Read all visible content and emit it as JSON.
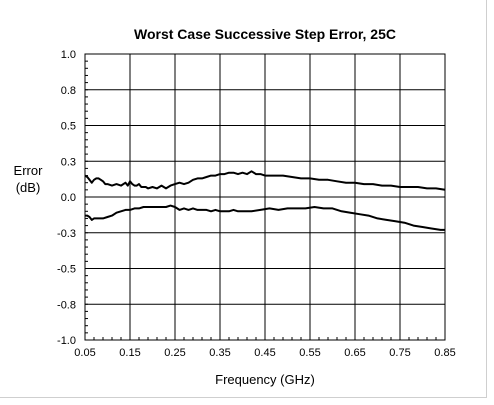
{
  "chart_data": {
    "type": "line",
    "title": "Worst Case Successive Step Error, 25C",
    "xlabel": "Frequency (GHz)",
    "ylabel_line1": "Error",
    "ylabel_line2": "(dB)",
    "xlim": [
      0.05,
      0.85
    ],
    "ylim": [
      -1.0,
      1.0
    ],
    "x_ticks": [
      0.05,
      0.15,
      0.25,
      0.35,
      0.45,
      0.55,
      0.65,
      0.75,
      0.85
    ],
    "x_tick_labels": [
      "0.05",
      "0.15",
      "0.25",
      "0.35",
      "0.45",
      "0.55",
      "0.65",
      "0.75",
      "0.85"
    ],
    "y_ticks": [
      1.0,
      0.75,
      0.5,
      0.25,
      0.0,
      -0.25,
      -0.5,
      -0.75,
      -1.0
    ],
    "y_tick_labels": [
      "1.0",
      "0.8",
      "0.5",
      "0.3",
      "0.0",
      "-0.3",
      "-0.5",
      "-0.8",
      "-1.0"
    ],
    "grid": true,
    "series": [
      {
        "color": "#000000",
        "x": [
          0.05,
          0.055,
          0.06,
          0.065,
          0.07,
          0.075,
          0.08,
          0.085,
          0.09,
          0.095,
          0.1,
          0.11,
          0.12,
          0.13,
          0.14,
          0.145,
          0.15,
          0.155,
          0.16,
          0.165,
          0.17,
          0.175,
          0.18,
          0.185,
          0.19,
          0.2,
          0.21,
          0.22,
          0.23,
          0.24,
          0.25,
          0.26,
          0.27,
          0.28,
          0.29,
          0.3,
          0.31,
          0.32,
          0.33,
          0.34,
          0.35,
          0.36,
          0.37,
          0.38,
          0.39,
          0.4,
          0.41,
          0.42,
          0.43,
          0.44,
          0.45,
          0.47,
          0.49,
          0.51,
          0.53,
          0.55,
          0.57,
          0.59,
          0.61,
          0.63,
          0.65,
          0.67,
          0.69,
          0.71,
          0.73,
          0.75,
          0.77,
          0.79,
          0.81,
          0.83,
          0.85
        ],
        "values": [
          0.15,
          0.14,
          0.12,
          0.1,
          0.12,
          0.13,
          0.13,
          0.12,
          0.11,
          0.09,
          0.09,
          0.08,
          0.09,
          0.08,
          0.1,
          0.08,
          0.11,
          0.09,
          0.08,
          0.08,
          0.09,
          0.07,
          0.07,
          0.07,
          0.06,
          0.07,
          0.06,
          0.08,
          0.06,
          0.08,
          0.09,
          0.1,
          0.09,
          0.1,
          0.12,
          0.13,
          0.13,
          0.14,
          0.15,
          0.15,
          0.16,
          0.16,
          0.17,
          0.17,
          0.16,
          0.17,
          0.16,
          0.18,
          0.16,
          0.16,
          0.15,
          0.15,
          0.15,
          0.14,
          0.13,
          0.13,
          0.12,
          0.12,
          0.11,
          0.1,
          0.1,
          0.09,
          0.09,
          0.08,
          0.08,
          0.07,
          0.07,
          0.07,
          0.06,
          0.06,
          0.05
        ]
      },
      {
        "color": "#000000",
        "x": [
          0.05,
          0.055,
          0.06,
          0.065,
          0.07,
          0.08,
          0.09,
          0.1,
          0.11,
          0.12,
          0.13,
          0.14,
          0.15,
          0.16,
          0.17,
          0.18,
          0.19,
          0.2,
          0.21,
          0.22,
          0.23,
          0.24,
          0.25,
          0.26,
          0.27,
          0.28,
          0.29,
          0.3,
          0.31,
          0.32,
          0.33,
          0.34,
          0.35,
          0.36,
          0.37,
          0.38,
          0.39,
          0.4,
          0.42,
          0.44,
          0.46,
          0.48,
          0.5,
          0.52,
          0.54,
          0.56,
          0.58,
          0.6,
          0.62,
          0.64,
          0.66,
          0.68,
          0.7,
          0.72,
          0.74,
          0.76,
          0.78,
          0.8,
          0.82,
          0.84,
          0.85
        ],
        "values": [
          -0.13,
          -0.13,
          -0.14,
          -0.16,
          -0.15,
          -0.15,
          -0.15,
          -0.14,
          -0.13,
          -0.11,
          -0.1,
          -0.09,
          -0.09,
          -0.08,
          -0.08,
          -0.07,
          -0.07,
          -0.07,
          -0.07,
          -0.07,
          -0.07,
          -0.06,
          -0.07,
          -0.09,
          -0.08,
          -0.09,
          -0.08,
          -0.09,
          -0.09,
          -0.09,
          -0.1,
          -0.09,
          -0.1,
          -0.1,
          -0.1,
          -0.09,
          -0.1,
          -0.1,
          -0.1,
          -0.09,
          -0.08,
          -0.09,
          -0.08,
          -0.08,
          -0.08,
          -0.07,
          -0.08,
          -0.08,
          -0.1,
          -0.11,
          -0.12,
          -0.13,
          -0.15,
          -0.16,
          -0.17,
          -0.18,
          -0.2,
          -0.21,
          -0.22,
          -0.23,
          -0.23
        ]
      }
    ]
  }
}
